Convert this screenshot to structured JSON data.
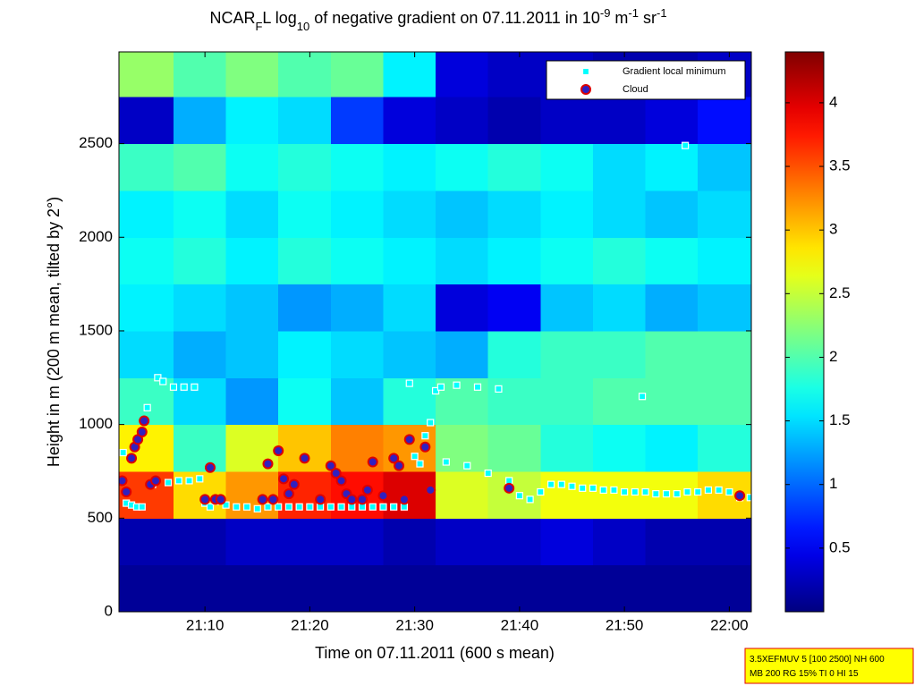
{
  "chart_data": {
    "type": "heatmap",
    "title_parts": [
      {
        "text": "NCAR"
      },
      {
        "text": "F",
        "shift": "sub"
      },
      {
        "text": "L log"
      },
      {
        "text": "10",
        "shift": "sub"
      },
      {
        "text": " of negative gradient on 07.11.2011 in 10"
      },
      {
        "text": "-9",
        "shift": "super"
      },
      {
        "text": " m"
      },
      {
        "text": "-1",
        "shift": "super"
      },
      {
        "text": " sr"
      },
      {
        "text": "-1",
        "shift": "super"
      }
    ],
    "xlabel": "Time on 07.11.2011 (600 s mean)",
    "ylabel": "Height in m (200 m mean, tilted by 2°)",
    "xlim": [
      1.8,
      62.1
    ],
    "xticks": [
      {
        "value": 10,
        "label": "21:10"
      },
      {
        "value": 20,
        "label": "21:20"
      },
      {
        "value": 30,
        "label": "21:30"
      },
      {
        "value": 40,
        "label": "21:40"
      },
      {
        "value": 50,
        "label": "21:50"
      },
      {
        "value": 60,
        "label": "22:00"
      }
    ],
    "ylim": [
      0,
      2990
    ],
    "yticks": [
      0,
      500,
      1000,
      1500,
      2000,
      2500
    ],
    "clim": [
      0,
      4.4
    ],
    "cticks": [
      0.5,
      1,
      1.5,
      2,
      2.5,
      3,
      3.5,
      4
    ],
    "colormap": "jet",
    "x_bins": [
      1.8,
      7,
      12,
      17,
      22,
      27,
      32,
      37,
      42,
      47,
      52,
      57,
      62.1
    ],
    "y_bins": [
      0,
      250,
      500,
      750,
      1000,
      1250,
      1500,
      1750,
      2000,
      2250,
      2500,
      2750,
      3000
    ],
    "z": [
      [
        0.1,
        0.1,
        0.1,
        0.1,
        0.1,
        0.1,
        0.1,
        0.1,
        0.1,
        0.1,
        0.1,
        0.1
      ],
      [
        0.2,
        0.2,
        0.3,
        0.3,
        0.3,
        0.2,
        0.3,
        0.3,
        0.4,
        0.3,
        0.2,
        0.2
      ],
      [
        3.6,
        2.9,
        3.2,
        3.7,
        3.8,
        4.0,
        2.6,
        2.5,
        2.7,
        2.7,
        2.7,
        2.9
      ],
      [
        2.8,
        1.9,
        2.6,
        3.0,
        3.3,
        3.2,
        2.2,
        2.1,
        1.8,
        1.7,
        1.6,
        1.8
      ],
      [
        1.9,
        1.5,
        1.2,
        1.7,
        1.4,
        1.8,
        2.0,
        1.9,
        1.9,
        2.0,
        2.0,
        2.0
      ],
      [
        1.5,
        1.3,
        1.4,
        1.6,
        1.5,
        1.4,
        1.3,
        1.8,
        1.9,
        1.9,
        2.0,
        2.0
      ],
      [
        1.6,
        1.5,
        1.4,
        1.2,
        1.3,
        1.5,
        0.4,
        0.5,
        1.4,
        1.5,
        1.3,
        1.4
      ],
      [
        1.7,
        1.8,
        1.6,
        1.8,
        1.7,
        1.6,
        1.5,
        1.6,
        1.7,
        1.8,
        1.7,
        1.6
      ],
      [
        1.6,
        1.7,
        1.5,
        1.7,
        1.6,
        1.5,
        1.4,
        1.5,
        1.6,
        1.5,
        1.4,
        1.5
      ],
      [
        1.9,
        2.0,
        1.7,
        1.8,
        1.7,
        1.6,
        1.7,
        1.8,
        1.7,
        1.5,
        1.6,
        1.4
      ],
      [
        0.3,
        1.3,
        1.6,
        1.5,
        0.8,
        0.4,
        0.3,
        0.2,
        0.3,
        0.3,
        0.4,
        0.6
      ],
      [
        2.3,
        2.0,
        2.2,
        2.0,
        2.1,
        1.6,
        0.4,
        0.3,
        0.3,
        0.2,
        0.2,
        0.3
      ]
    ],
    "series": [
      {
        "name": "Gradient local minimum",
        "color": "#00ffff",
        "marker": "square",
        "x": [
          2.2,
          2.5,
          3,
          3.5,
          4,
          4.5,
          5,
          5.5,
          6,
          6.5,
          7,
          7.5,
          8,
          8.5,
          9,
          9.5,
          10,
          10.5,
          11,
          12,
          13,
          14,
          15,
          16,
          17,
          18,
          19,
          20,
          21,
          22,
          23,
          24,
          25,
          26,
          27,
          28,
          29,
          29.5,
          30,
          30.5,
          31,
          31.5,
          32,
          32.5,
          33,
          34,
          35,
          36,
          37,
          38,
          39,
          40,
          41,
          42,
          43,
          44,
          45,
          46,
          47,
          48,
          49,
          50,
          51,
          51.7,
          52,
          53,
          54,
          55,
          55.8,
          56,
          57,
          58,
          59,
          60,
          61,
          62
        ],
        "values": [
          850,
          580,
          570,
          560,
          560,
          1090,
          680,
          1250,
          1230,
          690,
          1200,
          700,
          1200,
          700,
          1200,
          710,
          580,
          560,
          590,
          570,
          560,
          560,
          550,
          560,
          560,
          560,
          560,
          560,
          560,
          560,
          560,
          560,
          560,
          560,
          560,
          560,
          560,
          1220,
          830,
          790,
          940,
          1010,
          1180,
          1200,
          800,
          1210,
          780,
          1200,
          740,
          1190,
          700,
          620,
          600,
          640,
          680,
          680,
          670,
          660,
          660,
          650,
          650,
          640,
          640,
          1150,
          640,
          630,
          630,
          630,
          2490,
          640,
          640,
          650,
          650,
          640,
          610,
          610
        ]
      },
      {
        "name": "Cloud",
        "color": "#dd0000",
        "marker": "circle",
        "x": [
          2.1,
          2.5,
          3,
          3.3,
          3.6,
          4,
          4.2,
          4.8,
          5.3,
          10,
          10.5,
          11,
          11.5,
          15.5,
          16,
          16.5,
          17,
          17.5,
          18,
          18.5,
          19.5,
          21,
          22,
          22.5,
          23,
          23.5,
          24,
          25,
          25.5,
          26,
          27,
          28,
          28.5,
          29,
          29.5,
          31,
          31.5,
          39,
          61
        ],
        "values": [
          700,
          640,
          820,
          880,
          920,
          960,
          1020,
          680,
          700,
          600,
          770,
          600,
          600,
          600,
          790,
          600,
          860,
          710,
          630,
          680,
          820,
          600,
          780,
          740,
          700,
          630,
          600,
          600,
          650,
          800,
          620,
          820,
          780,
          600,
          920,
          880,
          650,
          660,
          620
        ]
      }
    ],
    "legend": "upper right",
    "footnote": [
      "3.5XEFMUV 5 [100 2500] NH 600",
      "MB 200 RG 15% TI 0 HI 15"
    ]
  }
}
